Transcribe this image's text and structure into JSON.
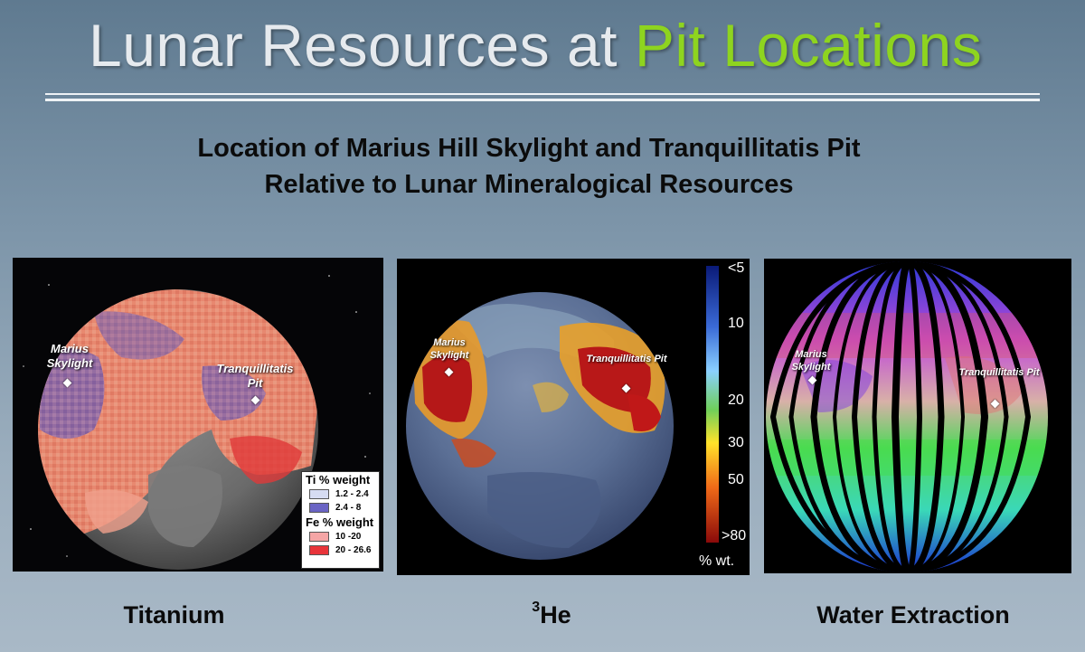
{
  "title": {
    "part1": "Lunar Resources at",
    "part2": "Pit Locations"
  },
  "subtitle": {
    "line1": "Location of Marius Hill Skylight and Tranquillitatis Pit",
    "line2": "Relative to Lunar Mineralogical Resources"
  },
  "sites": {
    "marius": "Marius Skylight",
    "tranq": "Tranquillitatis Pit"
  },
  "panels": {
    "titanium": {
      "caption": "Titanium",
      "legend": {
        "ti_header": "Ti % weight",
        "ti_items": [
          {
            "label": "1.2 - 2.4",
            "color": "#d6dcf2"
          },
          {
            "label": "2.4 - 8",
            "color": "#6a64c4"
          }
        ],
        "fe_header": "Fe % weight",
        "fe_items": [
          {
            "label": "10 -20",
            "color": "#f5a6a6"
          },
          {
            "label": "20 - 26.6",
            "color": "#e8343a"
          }
        ]
      }
    },
    "helium": {
      "caption_sup": "3",
      "caption": "He",
      "colorbar": {
        "ticks": [
          "<5",
          "10",
          "20",
          "30",
          "50",
          ">80"
        ],
        "unit": "% wt."
      }
    },
    "water": {
      "caption": "Water Extraction"
    }
  },
  "colors": {
    "title_white": "#e6eaee",
    "title_green": "#8ed41f",
    "background_top": "#5f7a90",
    "background_bottom": "#a9b9c7"
  }
}
